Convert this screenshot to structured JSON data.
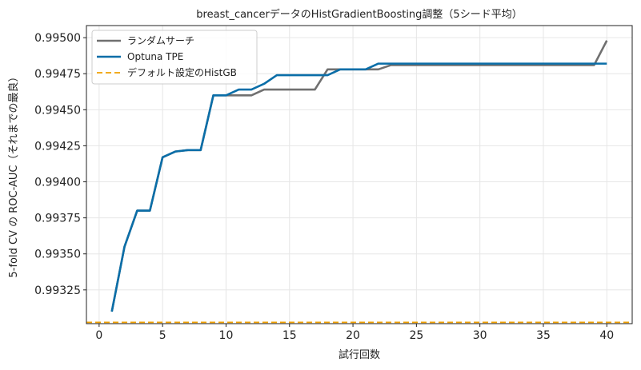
{
  "chart_data": {
    "type": "line",
    "title": "breast_cancerデータのHistGradientBoosting調整（5シード平均）",
    "xlabel": "試行回数",
    "ylabel": "5-fold CV の ROC-AUC（それまでの最良）",
    "xlim": [
      -1,
      42
    ],
    "ylim": [
      0.993016,
      0.995084
    ],
    "xticks": [
      0,
      5,
      10,
      15,
      20,
      25,
      30,
      35,
      40
    ],
    "yticks": [
      0.99325,
      0.9935,
      0.99375,
      0.994,
      0.99425,
      0.9945,
      0.99475,
      0.995
    ],
    "ytick_labels": [
      "0.99325",
      "0.99350",
      "0.99375",
      "0.99400",
      "0.99425",
      "0.99450",
      "0.99475",
      "0.99500"
    ],
    "grid": true,
    "legend_position": "top-left",
    "x": [
      1,
      2,
      3,
      4,
      5,
      6,
      7,
      8,
      9,
      10,
      11,
      12,
      13,
      14,
      15,
      16,
      17,
      18,
      19,
      20,
      21,
      22,
      23,
      24,
      25,
      26,
      27,
      28,
      29,
      30,
      31,
      32,
      33,
      34,
      35,
      36,
      37,
      38,
      39,
      40
    ],
    "series": [
      {
        "name": "ランダムサーチ",
        "color": "#707070",
        "style": "solid",
        "values": [
          0.9931,
          0.99355,
          0.9938,
          0.9938,
          0.99417,
          0.99421,
          0.99422,
          0.99422,
          0.9946,
          0.9946,
          0.9946,
          0.9946,
          0.99464,
          0.99464,
          0.99464,
          0.99464,
          0.99464,
          0.99478,
          0.99478,
          0.99478,
          0.99478,
          0.99478,
          0.99481,
          0.99481,
          0.99481,
          0.99481,
          0.99481,
          0.99481,
          0.99481,
          0.99481,
          0.99481,
          0.99481,
          0.99481,
          0.99481,
          0.99481,
          0.99481,
          0.99481,
          0.99481,
          0.99481,
          0.99498
        ]
      },
      {
        "name": "Optuna TPE",
        "color": "#0a6ea8",
        "style": "solid",
        "values": [
          0.9931,
          0.99355,
          0.9938,
          0.9938,
          0.99417,
          0.99421,
          0.99422,
          0.99422,
          0.9946,
          0.9946,
          0.99464,
          0.99464,
          0.99468,
          0.99474,
          0.99474,
          0.99474,
          0.99474,
          0.99474,
          0.99478,
          0.99478,
          0.99478,
          0.99482,
          0.99482,
          0.99482,
          0.99482,
          0.99482,
          0.99482,
          0.99482,
          0.99482,
          0.99482,
          0.99482,
          0.99482,
          0.99482,
          0.99482,
          0.99482,
          0.99482,
          0.99482,
          0.99482,
          0.99482,
          0.99482
        ]
      }
    ],
    "reference_line": {
      "name": "デフォルト設定のHistGB",
      "color": "#f0a000",
      "style": "dashed",
      "value": 0.993025
    }
  }
}
